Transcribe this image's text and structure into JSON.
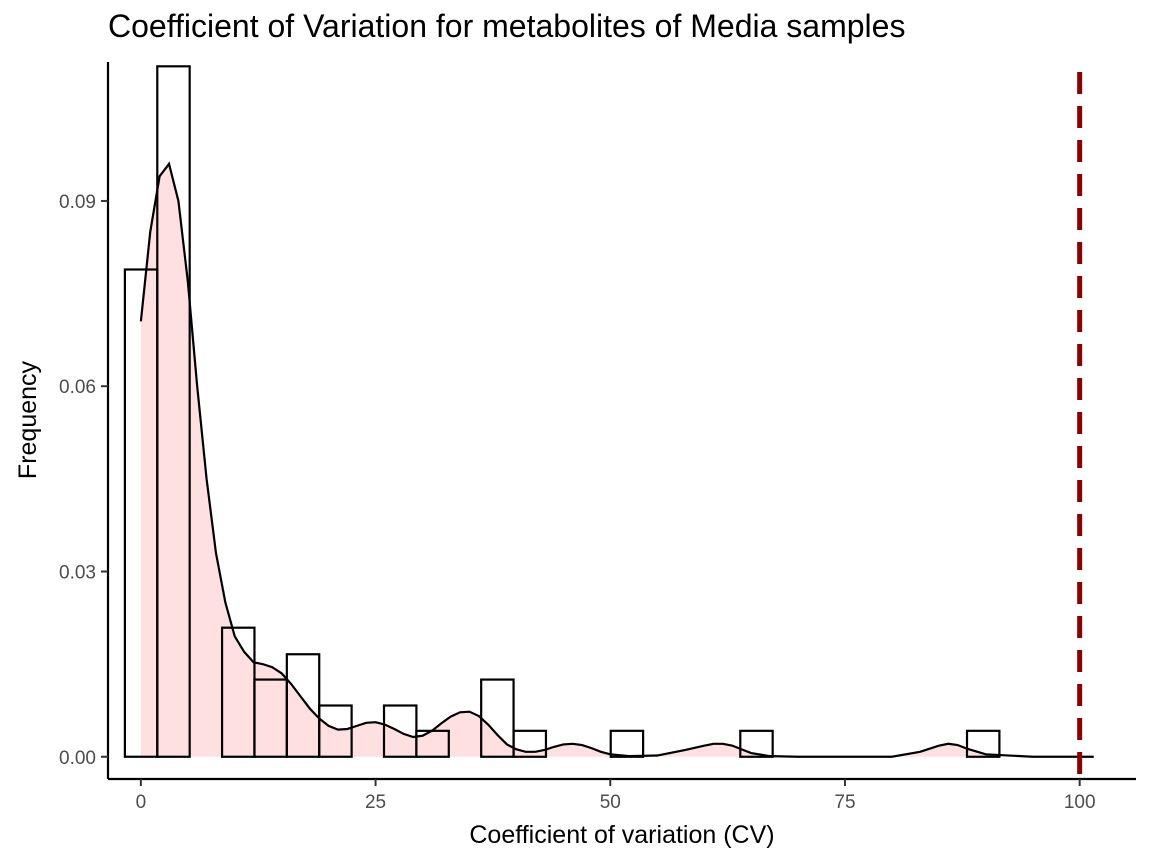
{
  "chart_data": {
    "type": "bar",
    "title": "Coefficient of Variation for metabolites of Media samples",
    "xlabel": "Coefficient of variation (CV)",
    "ylabel": "Frequency",
    "xlim": [
      -3.5,
      106
    ],
    "ylim": [
      -0.0036,
      0.1125
    ],
    "x_ticks": [
      0,
      25,
      50,
      75,
      100
    ],
    "x_tick_labels": [
      "0",
      "25",
      "50",
      "75",
      "100"
    ],
    "y_ticks": [
      0.0,
      0.03,
      0.06,
      0.09
    ],
    "y_tick_labels": [
      "0.00",
      "0.03",
      "0.06",
      "0.09"
    ],
    "grid": false,
    "histogram": {
      "bin_width": 3.45,
      "bin_start": -1.7,
      "values": [
        0.0789,
        0.1118,
        0.0,
        0.0209,
        0.0125,
        0.0166,
        0.0083,
        0.0,
        0.0083,
        0.0042,
        0.0,
        0.0125,
        0.0042,
        0.0,
        0.0,
        0.0042,
        0.0,
        0.0,
        0.0,
        0.0042,
        0.0,
        0.0,
        0.0,
        0.0,
        0.0,
        0.0,
        0.0042
      ],
      "outline_color": "#000000",
      "fill": "none"
    },
    "density": {
      "x": [
        0,
        1,
        2,
        3,
        4,
        5,
        6,
        7,
        8,
        9,
        10,
        11,
        12,
        13,
        14,
        15,
        16,
        17,
        18,
        19,
        20,
        21,
        22,
        23,
        24,
        25,
        26,
        27,
        28,
        29,
        30,
        31,
        32,
        33,
        34,
        35,
        36,
        37,
        38,
        39,
        40,
        41,
        42,
        43,
        44,
        45,
        46,
        47,
        48,
        49,
        50,
        52,
        55,
        58,
        60,
        61,
        62,
        63,
        64,
        65,
        67,
        70,
        75,
        80,
        83,
        85,
        86,
        87,
        88,
        90,
        95,
        101.5
      ],
      "y": [
        0.0705,
        0.085,
        0.094,
        0.096,
        0.09,
        0.077,
        0.06,
        0.045,
        0.033,
        0.025,
        0.0195,
        0.017,
        0.0153,
        0.015,
        0.0145,
        0.0135,
        0.0118,
        0.0098,
        0.0078,
        0.0062,
        0.005,
        0.0044,
        0.0045,
        0.005,
        0.0055,
        0.0056,
        0.0052,
        0.0045,
        0.0037,
        0.0032,
        0.0034,
        0.0042,
        0.0054,
        0.0065,
        0.0072,
        0.0073,
        0.0066,
        0.0052,
        0.0035,
        0.002,
        0.0012,
        0.0008,
        0.0008,
        0.0011,
        0.0016,
        0.002,
        0.0021,
        0.0019,
        0.0014,
        0.0008,
        0.0004,
        0.0001,
        0.0002,
        0.0011,
        0.0018,
        0.0021,
        0.0021,
        0.0018,
        0.0012,
        0.0006,
        0.0001,
        0.0,
        0.0,
        0.0,
        0.0008,
        0.0018,
        0.0021,
        0.0019,
        0.0013,
        0.0004,
        0.0,
        0.0
      ],
      "fill_color": "#ffe0e0",
      "line_color": "#000000"
    },
    "vline": {
      "x": 100,
      "color": "#8b0000",
      "style": "dashed"
    }
  }
}
